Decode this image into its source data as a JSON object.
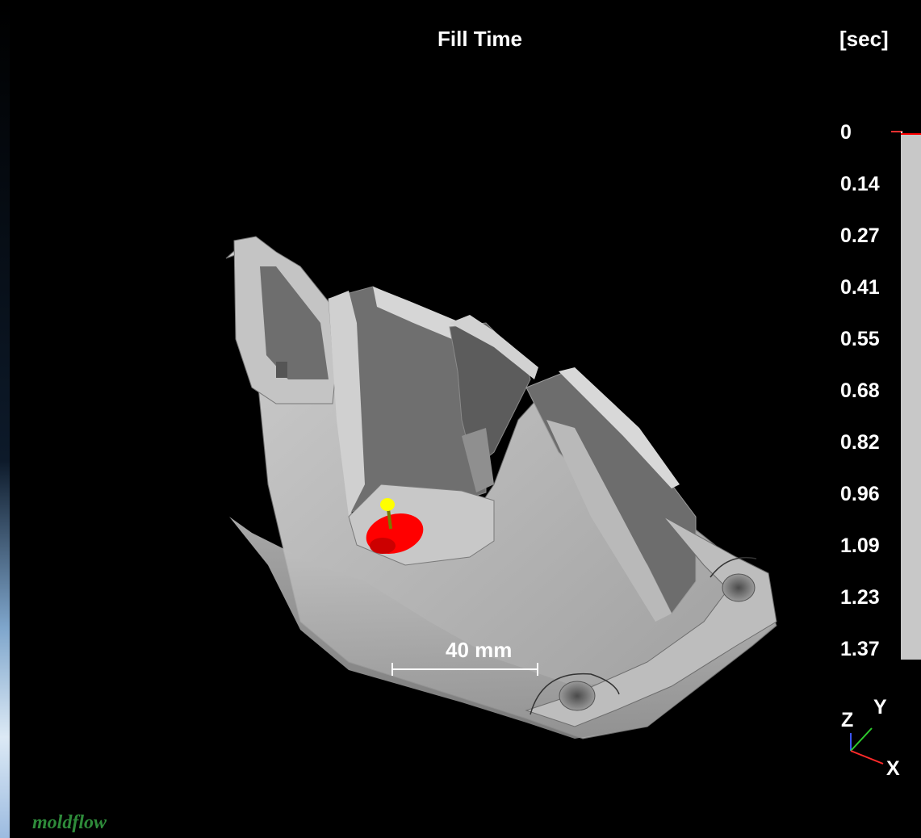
{
  "plot": {
    "title": "Fill Time",
    "unit": "[sec]",
    "legend": {
      "ticks": [
        "0",
        "0.14",
        "0.27",
        "0.41",
        "0.55",
        "0.68",
        "0.82",
        "0.96",
        "1.09",
        "1.23",
        "1.37"
      ],
      "start_color": "#ff0000",
      "bar_color": "#c8c8c8"
    },
    "scale_bar": {
      "label": "40 mm"
    },
    "axes": {
      "z": "Z",
      "y": "Y",
      "x": "X"
    },
    "logo": "moldflow"
  },
  "colors": {
    "background": "#000000",
    "part_gray": "#b8b8b8",
    "injection_point": "#ff0000",
    "gate_marker": "#ffff00",
    "logo_green": "#2e8b3a"
  }
}
